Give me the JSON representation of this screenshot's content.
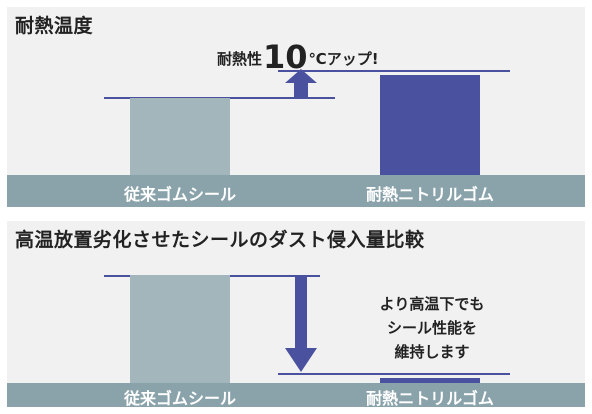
{
  "colors": {
    "panel_bg": "#f1f1f1",
    "strip": "#8aa3ab",
    "conventional_bar": "#a3b6bb",
    "nitrile_bar": "#4a52a0",
    "arrow": "#4a52a0",
    "line": "#4a52a0"
  },
  "chart_data": [
    {
      "type": "bar",
      "title": "耐熱温度",
      "categories": [
        "従来ゴムシール",
        "耐熱ニトリルゴム"
      ],
      "values": [
        1.0,
        1.3
      ],
      "annotation": {
        "prefix": "耐熱性",
        "number": "10",
        "suffix": "℃アップ!"
      }
    },
    {
      "type": "bar",
      "title": "高温放置劣化させたシールのダスト侵入量比較",
      "categories": [
        "従来ゴムシール",
        "耐熱ニトリルゴム"
      ],
      "values": [
        1.0,
        0.05
      ],
      "annotation_lines": [
        "より高温下でも",
        "シール性能を",
        "維持します"
      ]
    }
  ]
}
